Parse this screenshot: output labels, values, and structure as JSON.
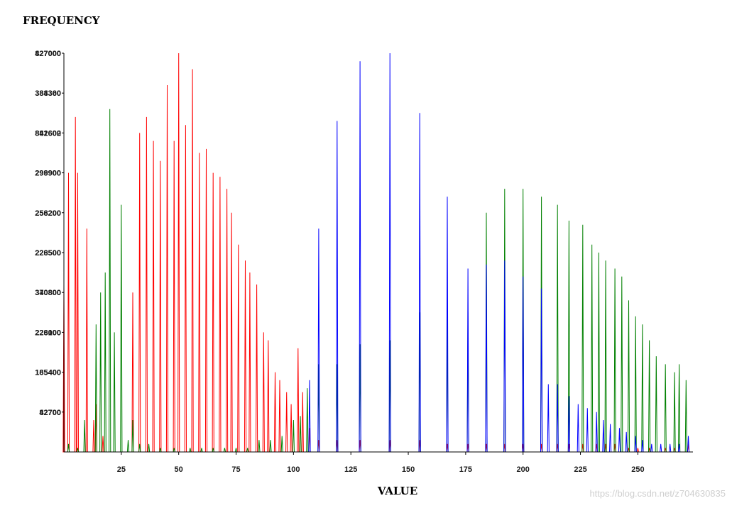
{
  "chart_data": {
    "type": "line",
    "ylabel": "FREQUENCY",
    "xlabel": "VALUE",
    "xlim": [
      0,
      274
    ],
    "ylim": [
      0,
      100
    ],
    "x_ticks": [
      25,
      50,
      75,
      100,
      125,
      150,
      175,
      200,
      225,
      250
    ],
    "y_ticks": [
      {
        "value": 10,
        "a": "82700",
        "b": "42700"
      },
      {
        "value": 20,
        "a": "185400",
        "b": "165400"
      },
      {
        "value": 30,
        "a": "228100",
        "b": "226000"
      },
      {
        "value": 40,
        "a": "370800",
        "b": "340800"
      },
      {
        "value": 50,
        "a": "228500",
        "b": "226500"
      },
      {
        "value": 60,
        "a": "256200",
        "b": "258200"
      },
      {
        "value": 70,
        "a": "298900",
        "b": "299900"
      },
      {
        "value": 80,
        "a": "841600",
        "b": "882602"
      },
      {
        "value": 90,
        "a": "384300",
        "b": "388360"
      },
      {
        "value": 100,
        "a": "427000",
        "b": "827000"
      }
    ],
    "colors": {
      "red": "#ff0000",
      "green": "#008000",
      "blue": "#0000ff"
    },
    "series": [
      {
        "color": "red",
        "peaks": [
          [
            0,
            42
          ],
          [
            2,
            70
          ],
          [
            5,
            84
          ],
          [
            6,
            70
          ],
          [
            10,
            56
          ],
          [
            13,
            8
          ],
          [
            14,
            12
          ],
          [
            17,
            4
          ],
          [
            30,
            40
          ],
          [
            33,
            80
          ],
          [
            36,
            84
          ],
          [
            39,
            78
          ],
          [
            42,
            73
          ],
          [
            45,
            92
          ],
          [
            48,
            78
          ],
          [
            50,
            100
          ],
          [
            53,
            82
          ],
          [
            56,
            96
          ],
          [
            59,
            75
          ],
          [
            62,
            76
          ],
          [
            65,
            70
          ],
          [
            68,
            69
          ],
          [
            71,
            66
          ],
          [
            73,
            60
          ],
          [
            76,
            52
          ],
          [
            79,
            48
          ],
          [
            81,
            45
          ],
          [
            84,
            42
          ],
          [
            87,
            30
          ],
          [
            89,
            28
          ],
          [
            92,
            20
          ],
          [
            94,
            18
          ],
          [
            97,
            15
          ],
          [
            99,
            12
          ],
          [
            102,
            26
          ],
          [
            104,
            15
          ],
          [
            107,
            6
          ],
          [
            111,
            3
          ],
          [
            119,
            3
          ],
          [
            129,
            3
          ],
          [
            142,
            3
          ],
          [
            155,
            3
          ],
          [
            167,
            2
          ],
          [
            176,
            2
          ],
          [
            184,
            2
          ],
          [
            192,
            2
          ],
          [
            200,
            2
          ],
          [
            208,
            2
          ],
          [
            215,
            2
          ],
          [
            220,
            2
          ],
          [
            226,
            2
          ],
          [
            232,
            2
          ],
          [
            236,
            2
          ],
          [
            240,
            2
          ],
          [
            246,
            1
          ],
          [
            250,
            1
          ],
          [
            255,
            1
          ],
          [
            262,
            1
          ],
          [
            266,
            1
          ],
          [
            272,
            2
          ]
        ]
      },
      {
        "color": "green",
        "peaks": [
          [
            2,
            2
          ],
          [
            6,
            1
          ],
          [
            9,
            8
          ],
          [
            14,
            32
          ],
          [
            16,
            40
          ],
          [
            18,
            45
          ],
          [
            20,
            86
          ],
          [
            22,
            30
          ],
          [
            25,
            62
          ],
          [
            28,
            3
          ],
          [
            30,
            8
          ],
          [
            33,
            2
          ],
          [
            37,
            2
          ],
          [
            42,
            1
          ],
          [
            48,
            1
          ],
          [
            55,
            1
          ],
          [
            60,
            1
          ],
          [
            65,
            1
          ],
          [
            70,
            1
          ],
          [
            75,
            1
          ],
          [
            80,
            1
          ],
          [
            85,
            3
          ],
          [
            90,
            3
          ],
          [
            95,
            4
          ],
          [
            100,
            8
          ],
          [
            103,
            9
          ],
          [
            106,
            16
          ],
          [
            111,
            22
          ],
          [
            119,
            22
          ],
          [
            129,
            27
          ],
          [
            142,
            28
          ],
          [
            155,
            35
          ],
          [
            167,
            35
          ],
          [
            176,
            35
          ],
          [
            184,
            60
          ],
          [
            192,
            66
          ],
          [
            200,
            66
          ],
          [
            208,
            64
          ],
          [
            215,
            62
          ],
          [
            220,
            58
          ],
          [
            226,
            57
          ],
          [
            230,
            52
          ],
          [
            233,
            50
          ],
          [
            236,
            48
          ],
          [
            240,
            46
          ],
          [
            243,
            44
          ],
          [
            246,
            38
          ],
          [
            249,
            34
          ],
          [
            252,
            32
          ],
          [
            255,
            28
          ],
          [
            258,
            24
          ],
          [
            262,
            22
          ],
          [
            266,
            20
          ],
          [
            268,
            22
          ],
          [
            271,
            18
          ]
        ]
      },
      {
        "color": "blue",
        "peaks": [
          [
            107,
            18
          ],
          [
            111,
            56
          ],
          [
            119,
            83
          ],
          [
            129,
            98
          ],
          [
            142,
            100
          ],
          [
            155,
            85
          ],
          [
            167,
            64
          ],
          [
            176,
            46
          ],
          [
            184,
            47
          ],
          [
            192,
            48
          ],
          [
            200,
            44
          ],
          [
            208,
            41
          ],
          [
            211,
            17
          ],
          [
            215,
            17
          ],
          [
            220,
            14
          ],
          [
            224,
            12
          ],
          [
            228,
            11
          ],
          [
            232,
            10
          ],
          [
            235,
            8
          ],
          [
            238,
            7
          ],
          [
            242,
            6
          ],
          [
            245,
            5
          ],
          [
            249,
            4
          ],
          [
            252,
            3
          ],
          [
            256,
            2
          ],
          [
            260,
            2
          ],
          [
            264,
            2
          ],
          [
            268,
            2
          ],
          [
            272,
            4
          ]
        ]
      }
    ]
  },
  "watermark": "https://blog.csdn.net/z704630835"
}
